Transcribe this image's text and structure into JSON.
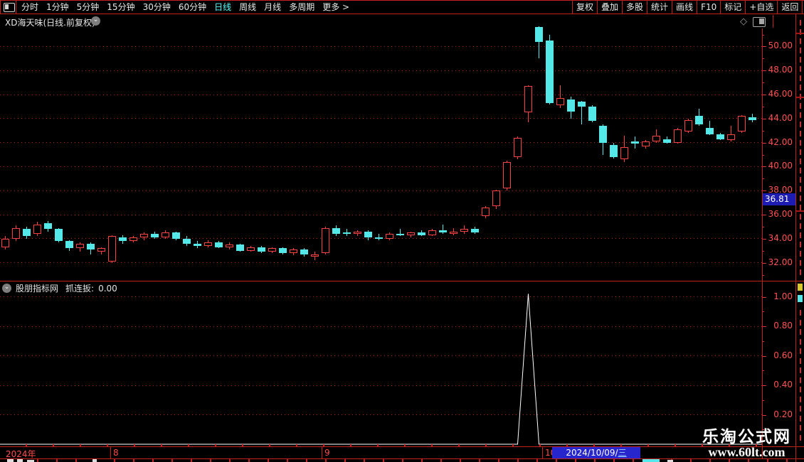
{
  "window": {
    "title": "XD海天味(日线.前复权)"
  },
  "toolbar": {
    "periods": [
      "分时",
      "1分钟",
      "5分钟",
      "15分钟",
      "30分钟",
      "60分钟",
      "日线",
      "周线",
      "月线",
      "多周期",
      "更多 >"
    ],
    "active_period": "日线",
    "actions": [
      "复权",
      "叠加",
      "多股",
      "统计",
      "画线",
      "F10",
      "标记",
      "+自选",
      "返回"
    ]
  },
  "colors": {
    "up": "#ff4040",
    "down": "#54e8e8",
    "grid": "#b81f1f",
    "border": "#c42020",
    "axis_text": "#ff5252",
    "active_tab": "#55ffff",
    "badge_bg": "#1c1cb2",
    "datebox_bg": "#2626cc",
    "indicator_line": "#ffffff"
  },
  "price_axis": {
    "labels": [
      "50.00",
      "48.00",
      "46.00",
      "44.00",
      "42.00",
      "40.00",
      "38.00",
      "36.00",
      "34.00",
      "32.00"
    ],
    "badge": "36.81"
  },
  "indicator_panel": {
    "source": "股朋指标网",
    "label": "抓连扳:",
    "value": "0.00",
    "axis_labels": [
      "1.00",
      "0.80",
      "0.60",
      "0.40",
      "0.20"
    ]
  },
  "timeline": {
    "year": "2024年",
    "months": [
      {
        "label": "8",
        "x": 155
      },
      {
        "label": "9",
        "x": 452
      },
      {
        "label": "10",
        "x": 762
      }
    ],
    "selected_date": "2024/10/09/",
    "selected_weekday": "三"
  },
  "watermark": {
    "title": "乐淘公式网",
    "url": "www.60lt.com"
  },
  "chart_data": [
    {
      "type": "candlestick",
      "title": "XD海天味 日线 前复权",
      "ylim": [
        30.5,
        51.7
      ],
      "y_ticks": [
        32,
        34,
        36,
        38,
        40,
        42,
        44,
        46,
        48,
        50
      ],
      "crosshair_price": 36.81,
      "selected_bar_date": "2024/10/09/三",
      "x_axis": {
        "year": "2024",
        "month_separator_indices": {
          "8": 10,
          "9": 30,
          "10": 51
        }
      },
      "ohlc": [
        [
          33.3,
          34.2,
          33.1,
          34.0
        ],
        [
          34.0,
          35.1,
          33.8,
          34.9
        ],
        [
          34.8,
          35.0,
          34.0,
          34.2
        ],
        [
          34.4,
          35.4,
          34.2,
          35.2
        ],
        [
          35.3,
          35.5,
          34.6,
          34.8
        ],
        [
          34.8,
          34.9,
          33.7,
          33.8
        ],
        [
          33.8,
          33.9,
          33.0,
          33.2
        ],
        [
          33.2,
          33.7,
          32.9,
          33.6
        ],
        [
          33.6,
          33.7,
          32.7,
          33.1
        ],
        [
          32.9,
          33.3,
          32.7,
          33.2
        ],
        [
          32.1,
          34.3,
          32.0,
          34.2
        ],
        [
          34.1,
          34.3,
          33.6,
          33.8
        ],
        [
          33.8,
          34.2,
          33.7,
          34.1
        ],
        [
          34.1,
          34.5,
          33.9,
          34.4
        ],
        [
          34.4,
          34.6,
          34.0,
          34.1
        ],
        [
          34.1,
          34.7,
          34.0,
          34.5
        ],
        [
          34.5,
          34.6,
          33.9,
          34.0
        ],
        [
          34.0,
          34.2,
          33.4,
          33.6
        ],
        [
          33.6,
          33.8,
          33.2,
          33.4
        ],
        [
          33.4,
          33.9,
          33.3,
          33.7
        ],
        [
          33.7,
          33.8,
          33.2,
          33.3
        ],
        [
          33.3,
          33.7,
          33.1,
          33.5
        ],
        [
          33.5,
          33.6,
          32.9,
          33.0
        ],
        [
          33.0,
          33.4,
          32.9,
          33.3
        ],
        [
          33.3,
          33.4,
          32.8,
          32.9
        ],
        [
          32.9,
          33.3,
          32.8,
          33.2
        ],
        [
          33.2,
          33.3,
          32.7,
          32.8
        ],
        [
          32.8,
          33.2,
          32.6,
          33.1
        ],
        [
          33.1,
          33.2,
          32.5,
          32.7
        ],
        [
          32.7,
          32.9,
          32.2,
          32.7
        ],
        [
          32.8,
          35.0,
          32.7,
          34.9
        ],
        [
          34.9,
          35.1,
          34.2,
          34.4
        ],
        [
          34.5,
          34.8,
          34.2,
          34.4
        ],
        [
          34.4,
          34.7,
          34.2,
          34.6
        ],
        [
          34.6,
          34.7,
          33.9,
          34.1
        ],
        [
          34.1,
          34.4,
          33.9,
          34.0
        ],
        [
          34.0,
          34.5,
          33.9,
          34.4
        ],
        [
          34.4,
          34.8,
          34.2,
          34.3
        ],
        [
          34.3,
          34.6,
          34.1,
          34.5
        ],
        [
          34.5,
          34.7,
          34.2,
          34.3
        ],
        [
          34.3,
          34.8,
          34.2,
          34.7
        ],
        [
          34.7,
          35.2,
          34.4,
          34.5
        ],
        [
          34.5,
          34.9,
          34.3,
          34.6
        ],
        [
          34.6,
          35.1,
          34.4,
          34.8
        ],
        [
          34.8,
          35.0,
          34.4,
          34.5
        ],
        [
          35.9,
          36.7,
          35.7,
          36.6
        ],
        [
          36.7,
          38.1,
          36.5,
          38.0
        ],
        [
          38.2,
          40.5,
          38.0,
          40.4
        ],
        [
          40.8,
          42.5,
          40.6,
          42.4
        ],
        [
          44.5,
          46.8,
          43.7,
          46.7
        ],
        [
          51.6,
          51.7,
          49.0,
          50.4
        ],
        [
          50.5,
          51.0,
          45.2,
          45.3
        ],
        [
          45.1,
          46.8,
          44.9,
          45.7
        ],
        [
          45.6,
          45.8,
          44.0,
          44.6
        ],
        [
          45.4,
          45.5,
          43.5,
          45.0
        ],
        [
          45.0,
          45.1,
          43.7,
          43.8
        ],
        [
          43.4,
          43.5,
          41.0,
          42.0
        ],
        [
          41.8,
          42.0,
          40.7,
          40.8
        ],
        [
          40.6,
          42.6,
          40.4,
          41.6
        ],
        [
          42.1,
          42.5,
          41.5,
          41.9
        ],
        [
          41.7,
          42.2,
          41.5,
          42.1
        ],
        [
          42.1,
          43.1,
          42.0,
          42.6
        ],
        [
          42.3,
          42.5,
          41.9,
          42.0
        ],
        [
          42.0,
          43.2,
          41.9,
          43.1
        ],
        [
          42.9,
          44.0,
          42.8,
          43.9
        ],
        [
          44.2,
          44.8,
          43.4,
          43.5
        ],
        [
          43.2,
          43.8,
          42.6,
          42.7
        ],
        [
          42.7,
          42.8,
          42.2,
          42.3
        ],
        [
          42.2,
          43.4,
          42.1,
          42.7
        ],
        [
          42.9,
          44.3,
          42.8,
          44.2
        ],
        [
          44.1,
          44.4,
          43.7,
          43.9
        ]
      ]
    },
    {
      "type": "line",
      "name": "抓连扳",
      "source": "股朋指标网",
      "current_value": 0.0,
      "ylim": [
        0,
        1.12
      ],
      "y_ticks": [
        0.2,
        0.4,
        0.6,
        0.8,
        1.0
      ],
      "base_value": 0,
      "spikes": [
        {
          "index": 49,
          "value": 1.02
        }
      ],
      "line_color": "#ffffff"
    }
  ]
}
